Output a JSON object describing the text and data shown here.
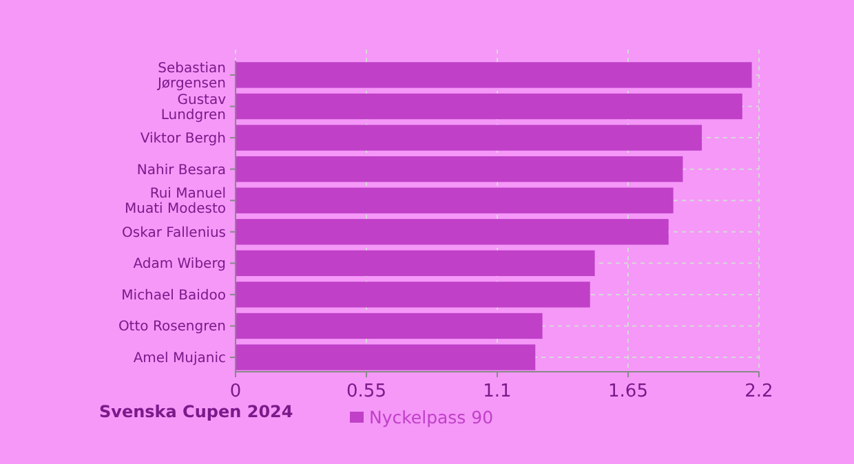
{
  "chart_data": {
    "type": "bar",
    "orientation": "horizontal",
    "categories": [
      "Sebastian\nJørgensen",
      "Gustav\nLundgren",
      "Viktor Bergh",
      "Nahir Besara",
      "Rui Manuel\nMuati Modesto",
      "Oskar Fallenius",
      "Adam Wiberg",
      "Michael Baidoo",
      "Otto Rosengren",
      "Amel Mujanic"
    ],
    "series": [
      {
        "name": "Nyckelpass 90",
        "color": "#c040c8",
        "values": [
          2.17,
          2.13,
          1.96,
          1.88,
          1.84,
          1.82,
          1.51,
          1.49,
          1.29,
          1.26
        ]
      }
    ],
    "xlim": [
      0,
      2.2
    ],
    "xticks": [
      0,
      0.55,
      1.1,
      1.65,
      2.2
    ],
    "grid": true,
    "legend": "bottom",
    "annotations": [
      "Svenska Cupen 2024"
    ]
  }
}
